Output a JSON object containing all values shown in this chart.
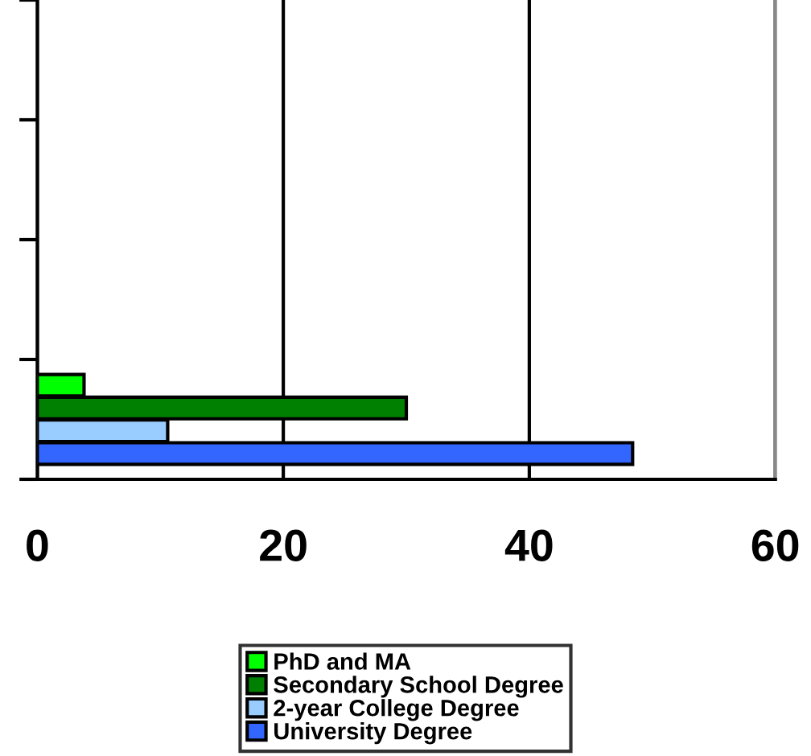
{
  "chart_data": {
    "type": "bar",
    "orientation": "horizontal",
    "categories": [
      null,
      null,
      null,
      null
    ],
    "series": [
      {
        "name": "PhD and MA",
        "color": "#00ff00",
        "values": [
          null,
          null,
          null,
          3.8
        ]
      },
      {
        "name": "Secondary School Degree",
        "color": "#008000",
        "values": [
          null,
          null,
          null,
          30
        ]
      },
      {
        "name": "2-year College Degree",
        "color": "#99ccff",
        "values": [
          null,
          null,
          null,
          10.6
        ]
      },
      {
        "name": "University Degree",
        "color": "#3366ff",
        "values": [
          null,
          null,
          null,
          48.4
        ]
      }
    ],
    "xlim": [
      0,
      60
    ],
    "xticks": [
      0,
      20,
      40,
      60
    ],
    "grid": "x",
    "legend": "bottom",
    "tick_labels": "x"
  }
}
